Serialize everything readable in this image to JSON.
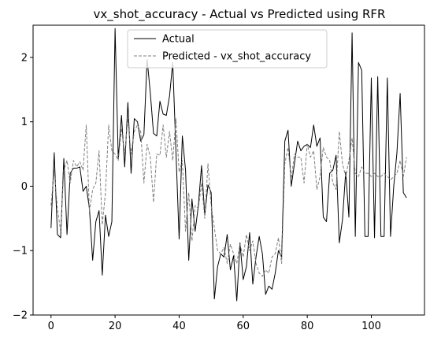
{
  "chart_data": {
    "type": "line",
    "title": "vx_shot_accuracy - Actual vs Predicted using RFR",
    "xlabel": "",
    "ylabel": "",
    "xlim": [
      -5.6,
      116.6
    ],
    "ylim": [
      -2.0,
      2.5
    ],
    "xticks": [
      0,
      20,
      40,
      60,
      80,
      100
    ],
    "yticks": [
      -2,
      -1,
      0,
      1,
      2
    ],
    "grid": false,
    "legend_position": "top-center",
    "series": [
      {
        "name": "Actual",
        "color": "#000000",
        "linestyle": "solid",
        "values": [
          -0.65,
          0.52,
          -0.75,
          -0.8,
          0.43,
          -0.75,
          0.2,
          0.28,
          0.28,
          0.3,
          -0.08,
          0.0,
          -0.35,
          -1.15,
          -0.55,
          -0.38,
          -1.38,
          -0.45,
          -0.78,
          -0.55,
          2.45,
          0.42,
          1.1,
          0.3,
          1.3,
          0.2,
          1.05,
          1.0,
          0.7,
          0.8,
          1.97,
          1.45,
          0.82,
          0.78,
          1.32,
          1.12,
          1.1,
          1.4,
          1.92,
          0.55,
          -0.82,
          0.78,
          0.25,
          -1.15,
          -0.2,
          -0.7,
          -0.3,
          0.32,
          -0.45,
          0.02,
          -0.1,
          -1.75,
          -1.25,
          -1.05,
          -1.1,
          -0.75,
          -1.3,
          -1.08,
          -1.78,
          -0.88,
          -1.45,
          -1.25,
          -0.72,
          -1.52,
          -1.1,
          -0.78,
          -1.05,
          -1.68,
          -1.55,
          -1.6,
          -1.35,
          -1.0,
          -1.1,
          0.7,
          0.87,
          0.0,
          0.35,
          0.7,
          0.55,
          0.62,
          0.65,
          0.6,
          0.95,
          0.62,
          0.75,
          -0.48,
          -0.55,
          0.2,
          0.25,
          0.48,
          -0.88,
          -0.52,
          0.22,
          -0.48,
          2.38,
          -0.78,
          1.92,
          1.8,
          -0.78,
          -0.78,
          1.68,
          -0.8,
          1.7,
          -0.78,
          -0.78,
          1.68,
          -0.78,
          0.0,
          0.52,
          1.44,
          -0.1,
          -0.18
        ]
      },
      {
        "name": "Predicted - vx_shot_accuracy",
        "color": "#7f7f7f",
        "linestyle": "dashed",
        "values": [
          -0.3,
          0.25,
          -0.35,
          -0.7,
          0.25,
          0.4,
          0.05,
          0.4,
          0.3,
          0.38,
          0.25,
          0.95,
          -0.4,
          -0.05,
          0.05,
          0.55,
          -0.6,
          -0.1,
          0.95,
          0.55,
          0.5,
          0.4,
          0.9,
          0.5,
          1.05,
          0.5,
          0.85,
          0.95,
          0.85,
          0.05,
          0.65,
          0.45,
          -0.25,
          0.5,
          0.48,
          0.95,
          0.45,
          0.85,
          0.4,
          1.05,
          0.22,
          0.4,
          -0.7,
          -0.1,
          -0.85,
          -0.3,
          -0.35,
          0.05,
          -0.5,
          0.35,
          -0.3,
          -0.65,
          -1.0,
          -1.05,
          -0.95,
          -1.2,
          -0.9,
          -1.05,
          -1.2,
          -0.9,
          -1.1,
          -0.75,
          -1.0,
          -0.85,
          -1.2,
          -1.35,
          -1.4,
          -1.3,
          -1.35,
          -1.1,
          -1.05,
          -0.8,
          -1.2,
          0.35,
          0.6,
          0.1,
          0.5,
          0.45,
          0.45,
          0.05,
          0.65,
          0.45,
          0.55,
          -0.05,
          0.15,
          0.6,
          0.45,
          0.4,
          0.05,
          -0.05,
          0.85,
          0.35,
          0.15,
          0.4,
          0.75,
          0.2,
          0.15,
          0.3,
          0.2,
          0.2,
          0.15,
          0.2,
          0.15,
          0.15,
          0.2,
          0.15,
          0.1,
          0.15,
          0.2,
          0.4,
          0.15,
          0.45
        ]
      }
    ]
  }
}
